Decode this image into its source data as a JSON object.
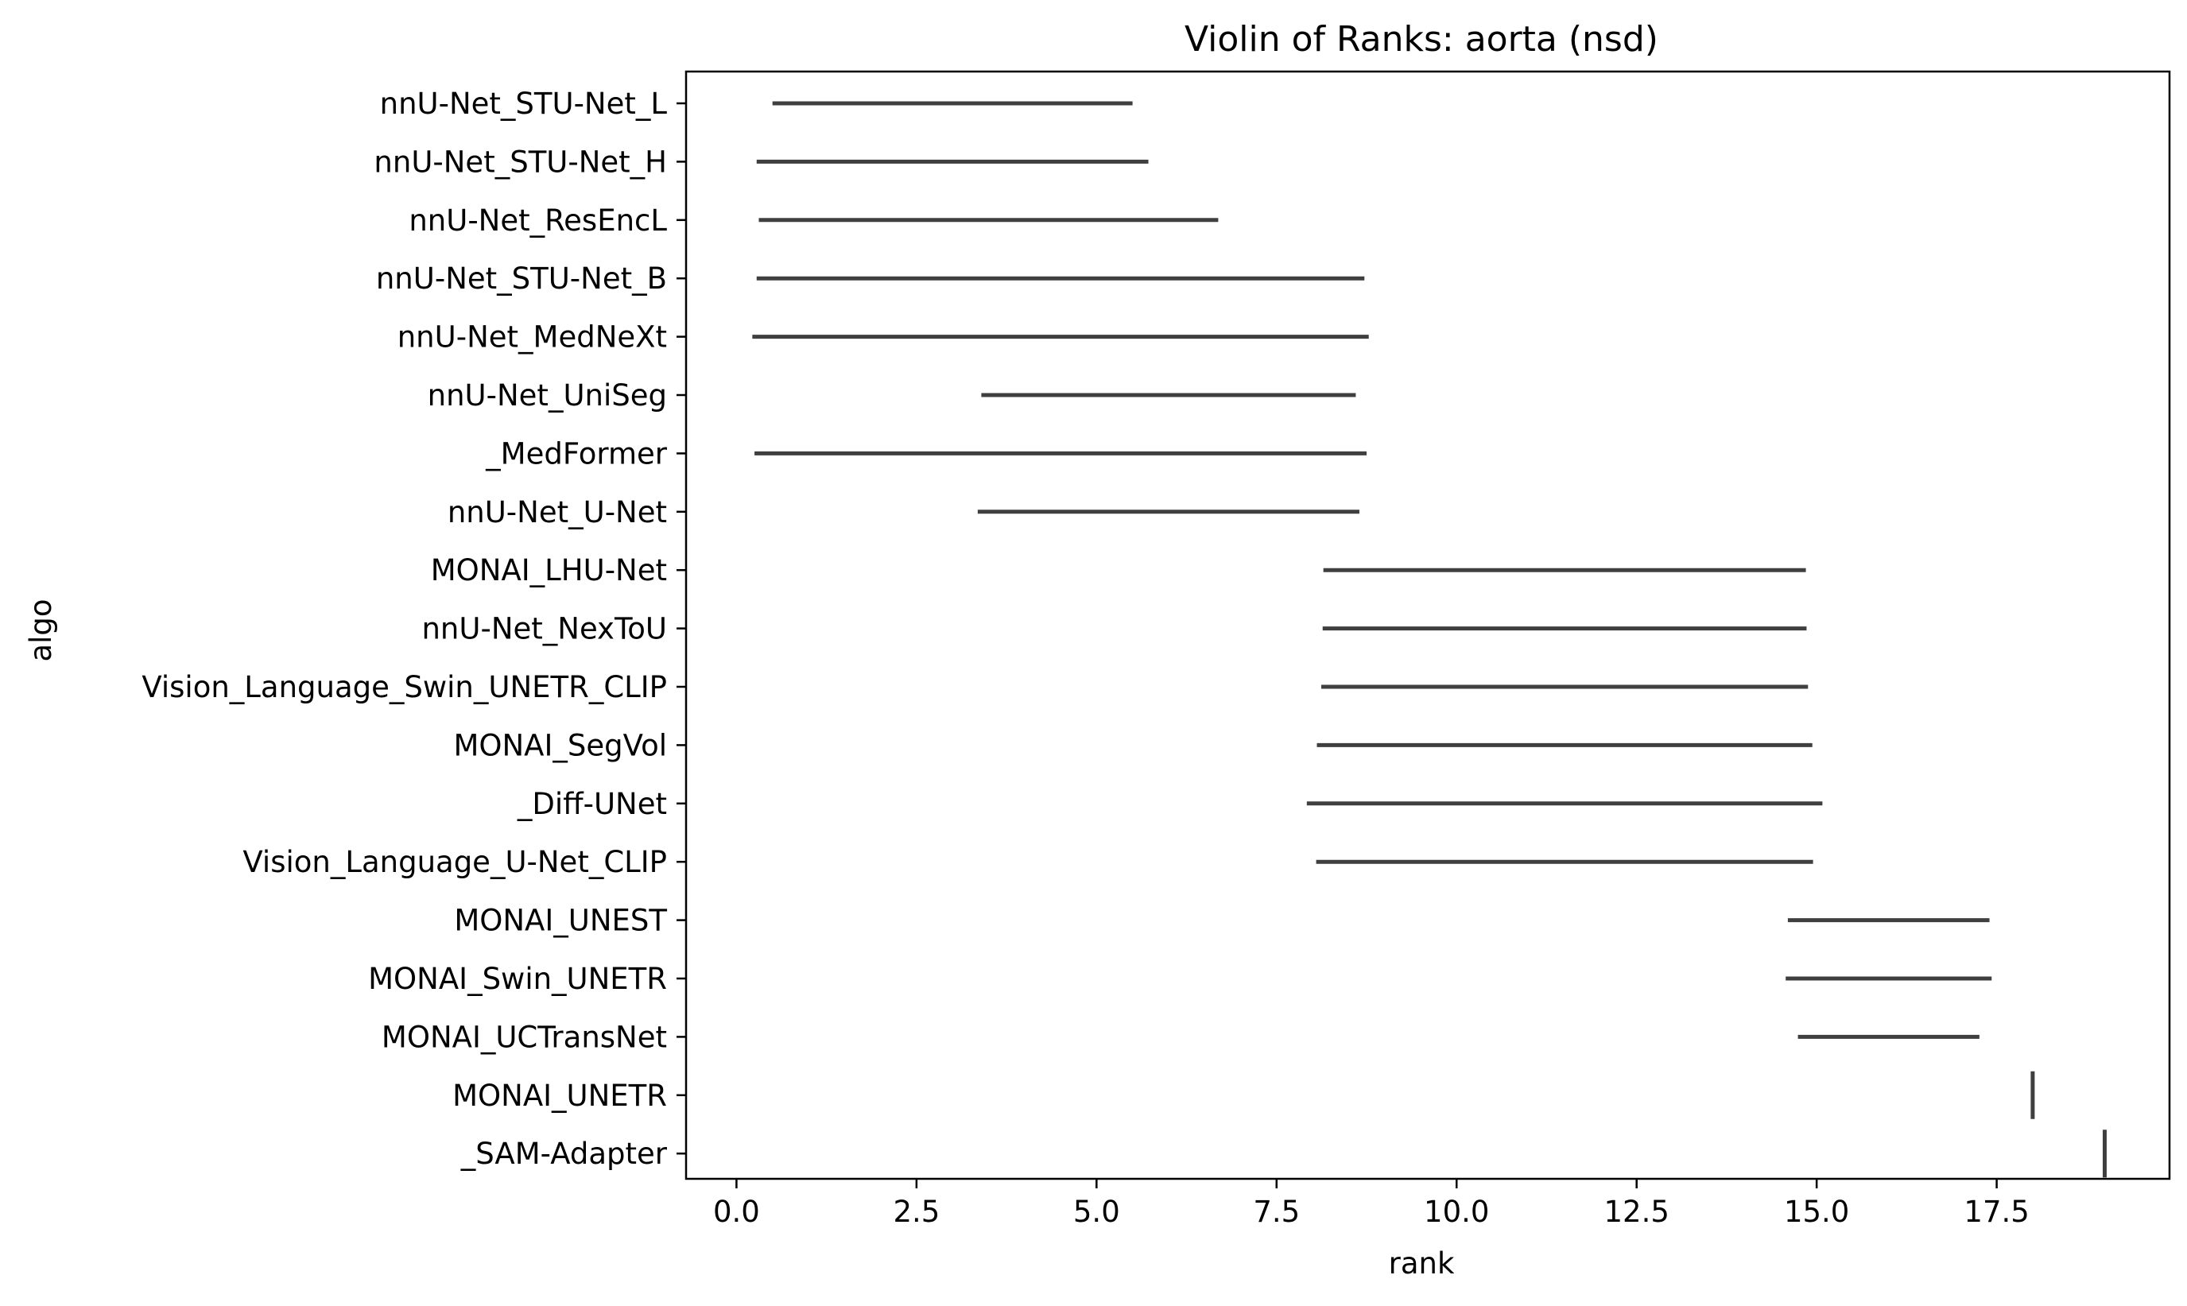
{
  "chart_data": {
    "type": "violin",
    "title": "Violin of Ranks: aorta (nsd)",
    "xlabel": "rank",
    "ylabel": "algo",
    "xlim": [
      -0.7,
      19.9
    ],
    "xticks": [
      0.0,
      2.5,
      5.0,
      7.5,
      10.0,
      12.5,
      15.0,
      17.5
    ],
    "xtick_labels": [
      "0.0",
      "2.5",
      "5.0",
      "7.5",
      "10.0",
      "12.5",
      "15.0",
      "17.5"
    ],
    "grid": false,
    "line_color": "#3f3f3f",
    "categories": [
      "nnU-Net_STU-Net_L",
      "nnU-Net_STU-Net_H",
      "nnU-Net_ResEncL",
      "nnU-Net_STU-Net_B",
      "nnU-Net_MedNeXt",
      "nnU-Net_UniSeg",
      "_MedFormer",
      "nnU-Net_U-Net",
      "MONAI_LHU-Net",
      "nnU-Net_NexToU",
      "Vision_Language_Swin_UNETR_CLIP",
      "MONAI_SegVol",
      "_Diff-UNet",
      "Vision_Language_U-Net_CLIP",
      "MONAI_UNEST",
      "MONAI_Swin_UNETR",
      "MONAI_UCTransNet",
      "MONAI_UNETR",
      "_SAM-Adapter"
    ],
    "ranges": [
      [
        0.5,
        5.5
      ],
      [
        0.28,
        5.72
      ],
      [
        0.31,
        6.69
      ],
      [
        0.28,
        8.72
      ],
      [
        0.22,
        8.78
      ],
      [
        3.4,
        8.6
      ],
      [
        0.25,
        8.75
      ],
      [
        3.35,
        8.65
      ],
      [
        8.15,
        14.85
      ],
      [
        8.14,
        14.86
      ],
      [
        8.12,
        14.88
      ],
      [
        8.06,
        14.94
      ],
      [
        7.92,
        15.08
      ],
      [
        8.05,
        14.95
      ],
      [
        14.6,
        17.4
      ],
      [
        14.57,
        17.43
      ],
      [
        14.74,
        17.26
      ],
      [
        17.98,
        18.02
      ],
      [
        18.98,
        19.02
      ]
    ]
  }
}
